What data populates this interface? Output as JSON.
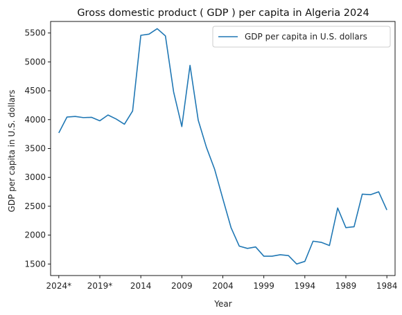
{
  "chart_data": {
    "type": "line",
    "title": "Gross domestic product ( GDP ) per capita in Algeria 2024",
    "xlabel": "Year",
    "ylabel": "GDP per capita in U.S. dollars",
    "x_reversed": true,
    "xlim": [
      2025,
      1983
    ],
    "ylim": [
      1300,
      5700
    ],
    "x_ticks": [
      {
        "value": 2024,
        "label": "2024*"
      },
      {
        "value": 2019,
        "label": "2019*"
      },
      {
        "value": 2014,
        "label": "2014"
      },
      {
        "value": 2009,
        "label": "2009"
      },
      {
        "value": 2004,
        "label": "2004"
      },
      {
        "value": 1999,
        "label": "1999"
      },
      {
        "value": 1994,
        "label": "1994"
      },
      {
        "value": 1989,
        "label": "1989"
      },
      {
        "value": 1984,
        "label": "1984"
      }
    ],
    "y_ticks": [
      1500,
      2000,
      2500,
      3000,
      3500,
      4000,
      4500,
      5000,
      5500
    ],
    "grid": false,
    "legend_position": "top-right",
    "series": [
      {
        "name": "GDP per capita in U.S. dollars",
        "color": "#1f77b4",
        "x": [
          2024,
          2023,
          2022,
          2021,
          2020,
          2019,
          2018,
          2017,
          2016,
          2015,
          2014,
          2013,
          2012,
          2011,
          2010,
          2009,
          2008,
          2007,
          2006,
          2005,
          2004,
          2003,
          2002,
          2001,
          2000,
          1999,
          1998,
          1997,
          1996,
          1995,
          1994,
          1993,
          1992,
          1991,
          1990,
          1989,
          1988,
          1987,
          1986,
          1985,
          1984
        ],
        "y": [
          3770,
          4045,
          4055,
          4035,
          4040,
          3980,
          4080,
          4010,
          3920,
          4150,
          5460,
          5480,
          5575,
          5450,
          4480,
          3880,
          4940,
          3990,
          3520,
          3140,
          2630,
          2130,
          1810,
          1770,
          1795,
          1635,
          1635,
          1660,
          1645,
          1500,
          1545,
          1895,
          1875,
          1820,
          2470,
          2130,
          2145,
          2710,
          2700,
          2750,
          2435
        ]
      }
    ]
  }
}
